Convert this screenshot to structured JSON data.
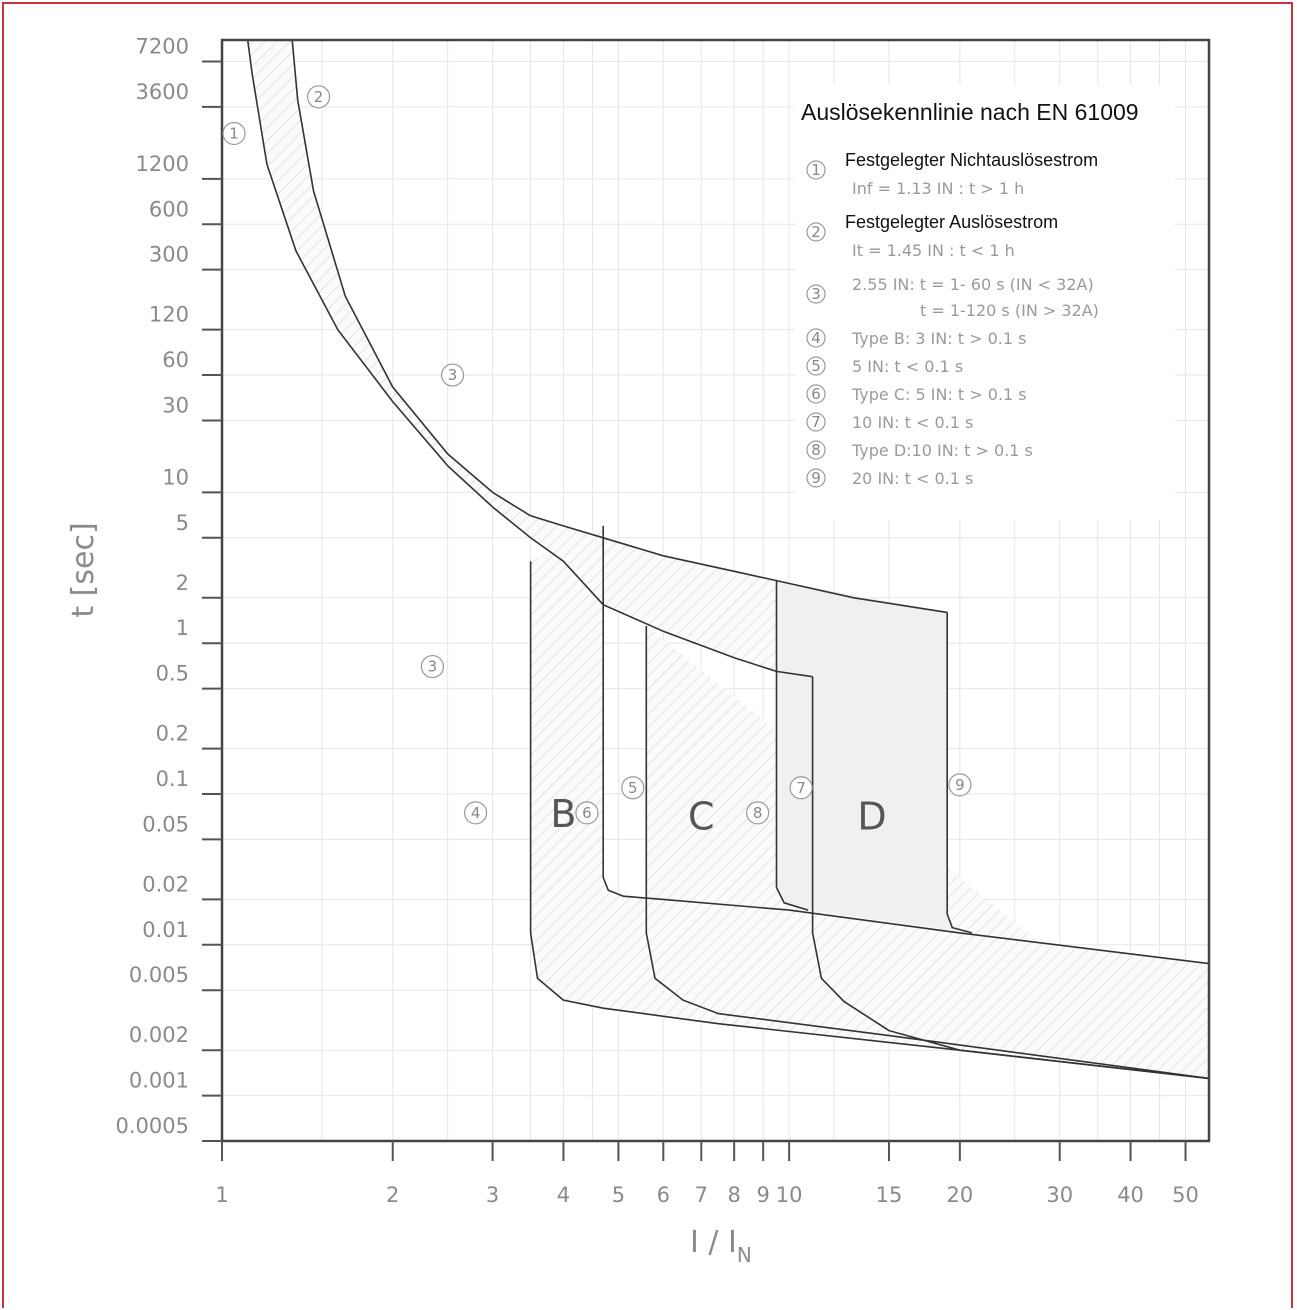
{
  "chart_data": {
    "type": "line",
    "title": "Auslösekennlinie nach EN 61009",
    "xlabel": "I / I",
    "xlabel_sub": "N",
    "ylabel": "t [sec]",
    "x_scale": "log",
    "y_scale": "log",
    "xlim": [
      1,
      55
    ],
    "ylim": [
      0.0005,
      10000
    ],
    "x_ticks": [
      1,
      2,
      3,
      4,
      5,
      6,
      7,
      8,
      9,
      10,
      15,
      20,
      30,
      40,
      50
    ],
    "x_tick_labels": [
      "1",
      "2",
      "3",
      "4",
      "5",
      "6",
      "7",
      "8",
      "9",
      "10",
      "15",
      "20",
      "30",
      "40",
      "50"
    ],
    "y_ticks": [
      7200,
      3600,
      1200,
      600,
      300,
      120,
      60,
      30,
      10,
      5,
      2,
      1,
      0.5,
      0.2,
      0.1,
      0.05,
      0.02,
      0.01,
      0.005,
      0.002,
      0.001,
      0.0005
    ],
    "y_tick_labels": [
      "7200",
      "3600",
      "1200",
      "600",
      "300",
      "120",
      "60",
      "30",
      "10",
      "5",
      "2",
      "1",
      "0.5",
      "0.2",
      "0.1",
      "0.05",
      "0.02",
      "0.01",
      "0.005",
      "0.002",
      "0.001",
      "0.0005"
    ],
    "grid": true,
    "legend_position": "top-right",
    "legend": [
      {
        "num": "1",
        "head": "Festgelegter Nichtauslösestrom",
        "lines": [
          "Inf = 1.13 IN : t > 1 h"
        ]
      },
      {
        "num": "2",
        "head": "Festgelegter Auslösestrom",
        "lines": [
          "It = 1.45 IN : t < 1 h"
        ]
      },
      {
        "num": "3",
        "head": "",
        "lines": [
          "2.55 IN: t = 1- 60 s (IN < 32A)",
          "t = 1-120 s (IN > 32A)"
        ]
      },
      {
        "num": "4",
        "head": "",
        "lines": [
          "Type B: 3 IN: t > 0.1 s"
        ]
      },
      {
        "num": "5",
        "head": "",
        "lines": [
          "5 IN: t < 0.1 s"
        ]
      },
      {
        "num": "6",
        "head": "",
        "lines": [
          "Type C: 5 IN: t > 0.1 s"
        ]
      },
      {
        "num": "7",
        "head": "",
        "lines": [
          "10 IN: t < 0.1 s"
        ]
      },
      {
        "num": "8",
        "head": "",
        "lines": [
          "Type D:10 IN: t > 0.1 s"
        ]
      },
      {
        "num": "9",
        "head": "",
        "lines": [
          "20 IN: t < 0.1 s"
        ]
      }
    ],
    "series": [
      {
        "name": "",
        "x": [
          1.11,
          1.13,
          1.2,
          1.35,
          1.6,
          2.0,
          2.5,
          3.0,
          3.5,
          4.0,
          4.7,
          6.0,
          8.0,
          9.5,
          11.0
        ],
        "y": [
          10000,
          6000,
          1500,
          400,
          120,
          40,
          15,
          8,
          5,
          3.5,
          1.8,
          1.2,
          0.8,
          0.65,
          0.6
        ]
      },
      {
        "name": "",
        "x": [
          1.33,
          1.36,
          1.45,
          1.65,
          2.0,
          2.5,
          3.0,
          3.5,
          4.0,
          4.7,
          6.0,
          8.0,
          9.5,
          13.0,
          19.0
        ],
        "y": [
          10000,
          4000,
          1000,
          200,
          50,
          18,
          10,
          7,
          6,
          5.0,
          3.8,
          3.0,
          2.6,
          2.0,
          1.6
        ]
      },
      {
        "name": "",
        "x": [
          3.5,
          3.5,
          3.6,
          4.0,
          4.7,
          7.5,
          20,
          55
        ],
        "y": [
          3.5,
          0.012,
          0.006,
          0.0043,
          0.0038,
          0.003,
          0.002,
          0.0013
        ]
      },
      {
        "name": "",
        "x": [
          4.7,
          4.7,
          4.8,
          5.1,
          6.0,
          10,
          20,
          55
        ],
        "y": [
          6.0,
          0.028,
          0.023,
          0.021,
          0.02,
          0.017,
          0.012,
          0.0075
        ]
      },
      {
        "name": "",
        "x": [
          5.6,
          5.6,
          5.8,
          6.5,
          7.5,
          15,
          55
        ],
        "y": [
          1.3,
          0.012,
          0.006,
          0.0043,
          0.0035,
          0.0025,
          0.0013
        ]
      },
      {
        "name": "",
        "x": [
          9.5,
          9.5,
          9.8,
          10.8
        ],
        "y": [
          2.6,
          0.024,
          0.019,
          0.017
        ]
      },
      {
        "name": "",
        "x": [
          11.0,
          11.0,
          11.4,
          12.5,
          15.0,
          20,
          55
        ],
        "y": [
          0.6,
          0.012,
          0.006,
          0.0042,
          0.0027,
          0.002,
          0.0013
        ]
      },
      {
        "name": "",
        "x": [
          19.0,
          19.0,
          19.4,
          21.0
        ],
        "y": [
          1.6,
          0.016,
          0.013,
          0.012
        ]
      }
    ],
    "markers": [
      {
        "num": "1",
        "x": 1.05,
        "y": 2400
      },
      {
        "num": "2",
        "x": 1.48,
        "y": 4200
      },
      {
        "num": "3",
        "x": 2.55,
        "y": 60
      },
      {
        "num": "3",
        "x": 2.35,
        "y": 0.7
      },
      {
        "num": "4",
        "x": 2.8,
        "y": 0.075
      },
      {
        "num": "5",
        "x": 5.3,
        "y": 0.11
      },
      {
        "num": "6",
        "x": 4.4,
        "y": 0.075
      },
      {
        "num": "7",
        "x": 10.5,
        "y": 0.11
      },
      {
        "num": "8",
        "x": 8.8,
        "y": 0.075
      },
      {
        "num": "9",
        "x": 20.0,
        "y": 0.115
      }
    ],
    "region_labels": [
      {
        "text": "B",
        "x": 4.0,
        "y": 0.075
      },
      {
        "text": "C",
        "x": 7.0,
        "y": 0.072
      },
      {
        "text": "D",
        "x": 14.0,
        "y": 0.072
      }
    ]
  }
}
